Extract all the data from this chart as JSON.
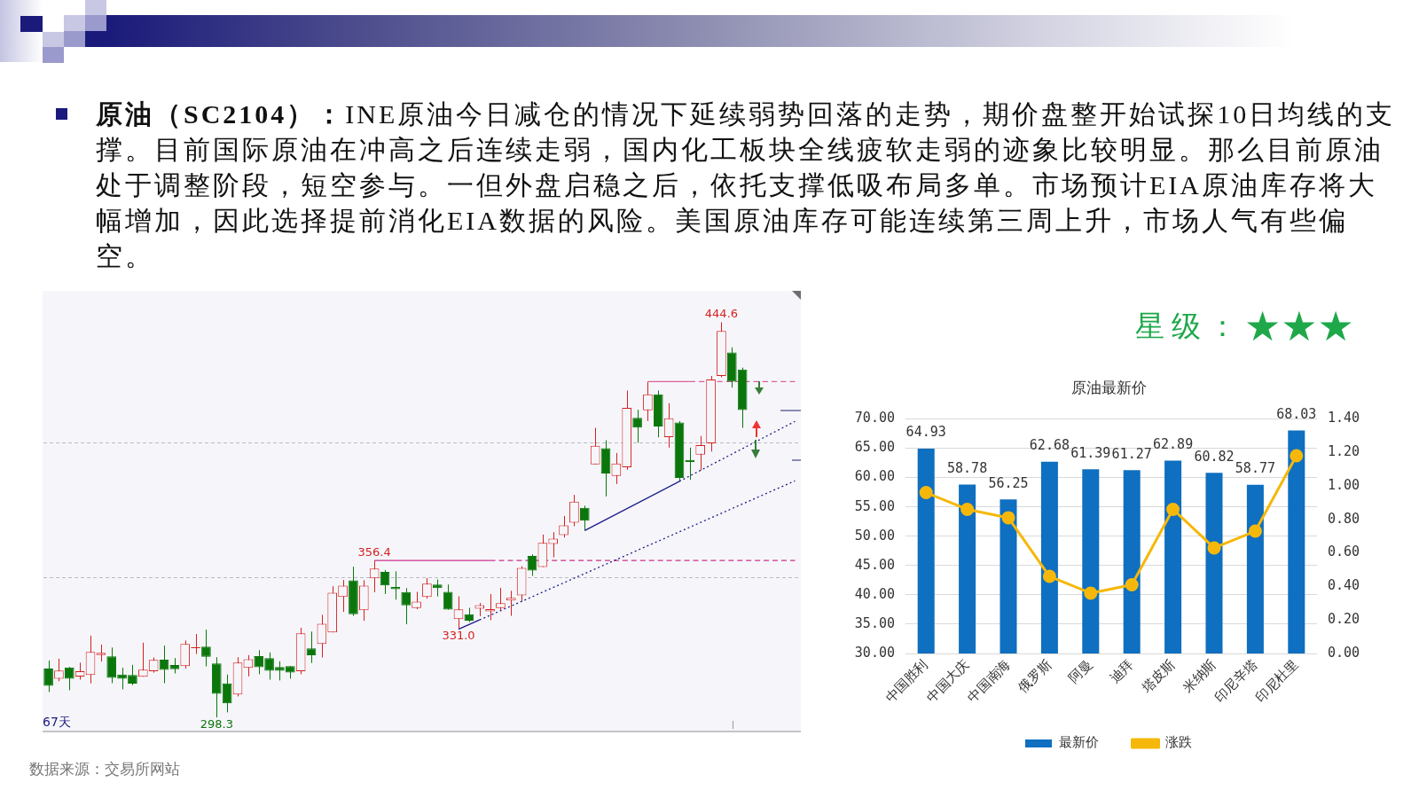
{
  "chart_data": [
    {
      "type": "other",
      "title": "原油（SC2104）：INE原油今日减仓的情况下延续弱势回落的走势，期价盘整开始试探10日均线的支撑。目前国际原油在冲高之后连续走弱，国内化工板块全线疲软走弱的迹象比较明显。那么目前原油处于调整阶段，短空参与。一但外盘启稳之后，依托支撑低吸布局多单。市场预计EIA原油库存将大幅增加，因此选择提前消化EIA数据的风险。美国原油库存可能连续第三周上升，市场人气有些偏空。"
    },
    {
      "type": "candlestick",
      "categories": [
        null,
        null,
        null,
        null,
        null,
        null,
        null,
        null,
        null,
        null,
        null,
        null,
        null,
        null,
        null,
        null,
        null,
        null,
        null,
        null,
        null,
        null,
        null,
        null,
        null,
        null,
        null,
        null,
        null,
        null,
        null,
        null,
        null,
        null,
        null,
        null,
        null,
        null,
        null,
        null,
        null,
        null,
        null,
        null,
        null,
        null,
        null,
        null,
        null,
        null,
        null,
        null,
        null,
        null,
        null,
        null,
        null,
        null,
        null,
        null,
        null,
        null,
        null,
        null,
        null,
        null,
        null,
        null,
        null,
        null,
        null,
        null
      ],
      "ohlc": [
        [
          316.4,
          319.4,
          307.7,
          310.0
        ],
        [
          312.6,
          320.1,
          311.7,
          315.7
        ],
        [
          316.8,
          317.0,
          308.4,
          312.6
        ],
        [
          313.5,
          318.6,
          312.3,
          315.4
        ],
        [
          314.0,
          328.6,
          310.9,
          322.6
        ],
        [
          321.4,
          325.3,
          319.0,
          322.2
        ],
        [
          320.9,
          324.2,
          311.0,
          313.0
        ],
        [
          314.2,
          316.7,
          308.7,
          312.6
        ],
        [
          314.0,
          317.8,
          310.3,
          310.8
        ],
        [
          313.4,
          326.0,
          313.4,
          316.0
        ],
        [
          315.4,
          320.5,
          314.9,
          319.6
        ],
        [
          319.7,
          324.9,
          311.0,
          315.9
        ],
        [
          317.7,
          320.3,
          314.6,
          316.2
        ],
        [
          317.3,
          326.8,
          316.4,
          325.5
        ],
        [
          324.0,
          329.2,
          321.8,
          324.3
        ],
        [
          324.5,
          330.8,
          317.2,
          320.8
        ],
        [
          318.3,
          320.6,
          298.3,
          307.1
        ],
        [
          310.9,
          314.2,
          300.2,
          303.5
        ],
        [
          306.8,
          320.6,
          306.1,
          318.6
        ],
        [
          316.7,
          321.4,
          313.5,
          319.9
        ],
        [
          321.0,
          323.2,
          314.3,
          316.9
        ],
        [
          320.3,
          322.4,
          312.3,
          315.6
        ],
        [
          317.0,
          319.1,
          312.0,
          315.6
        ],
        [
          317.3,
          317.3,
          312.7,
          314.9
        ],
        [
          315.4,
          331.5,
          314.3,
          329.5
        ],
        [
          323.9,
          330.1,
          318.5,
          321.3
        ],
        [
          325.5,
          336.3,
          320.5,
          333.0
        ],
        [
          329.8,
          346.9,
          329.8,
          344.5
        ],
        [
          342.9,
          349.2,
          337.4,
          347.1
        ],
        [
          349.1,
          354.1,
          335.9,
          336.5
        ],
        [
          338.0,
          349.1,
          334.1,
          347.1
        ],
        [
          349.8,
          356.4,
          344.7,
          353.4
        ],
        [
          352.2,
          352.9,
          344.0,
          347.2
        ],
        [
          346.6,
          352.4,
          341.9,
          345.8
        ],
        [
          344.7,
          346.2,
          332.8,
          339.8
        ],
        [
          338.8,
          344.8,
          338.4,
          341.2
        ],
        [
          342.9,
          349.9,
          342.3,
          347.8
        ],
        [
          347.5,
          349.4,
          343.1,
          346.2
        ],
        [
          344.8,
          347.5,
          338.2,
          338.2
        ],
        [
          334.7,
          343.2,
          331.0,
          338.3
        ],
        [
          336.5,
          338.9,
          333.6,
          334.1
        ],
        [
          338.6,
          340.7,
          335.8,
          339.9
        ],
        [
          337.6,
          344.0,
          334.3,
          338.4
        ],
        [
          338.8,
          346.3,
          338.1,
          340.6
        ],
        [
          341.6,
          345.2,
          335.9,
          342.6
        ],
        [
          343.5,
          354.3,
          341.3,
          353.7
        ],
        [
          358.1,
          358.7,
          350.7,
          352.7
        ],
        [
          354.0,
          366.0,
          354.0,
          362.9
        ],
        [
          362.5,
          366.9,
          357.6,
          364.5
        ],
        [
          365.8,
          372.9,
          364.9,
          369.4
        ],
        [
          370.4,
          380.7,
          369.1,
          378.2
        ],
        [
          375.9,
          376.7,
          367.5,
          371.1
        ],
        [
          392.0,
          405.5,
          392.0,
          398.9
        ],
        [
          398.0,
          400.9,
          380.1,
          388.6
        ],
        [
          387.7,
          396.2,
          384.7,
          392.3
        ],
        [
          390.9,
          419.3,
          390.0,
          412.9
        ],
        [
          409.2,
          412.2,
          400.0,
          405.6
        ],
        [
          412.0,
          422.6,
          408.0,
          417.9
        ],
        [
          417.9,
          419.3,
          402.0,
          406.0
        ],
        [
          402.1,
          414.6,
          398.2,
          409.0
        ],
        [
          407.5,
          408.0,
          385.7,
          387.0
        ],
        [
          393.6,
          398.2,
          386.3,
          392.9
        ],
        [
          395.6,
          402.5,
          389.8,
          399.1
        ],
        [
          399.8,
          424.7,
          396.7,
          423.4
        ],
        [
          424.7,
          444.6,
          424.2,
          441.4
        ],
        [
          433.4,
          435.3,
          420.4,
          422.6
        ],
        [
          427.1,
          427.8,
          405.5,
          412.1
        ],
        null,
        null,
        null,
        null,
        null
      ],
      "colors": [
        "#0b760b",
        "#d42020",
        "#0b760b",
        "#d42020",
        "#d42020",
        "#d42020",
        "#0b760b",
        "#0b760b",
        "#0b760b",
        "#d42020",
        "#d42020",
        "#0b760b",
        "#0b760b",
        "#d42020",
        "#d42020",
        "#0b760b",
        "#0b760b",
        "#0b760b",
        "#d42020",
        "#d42020",
        "#0b760b",
        "#0b760b",
        "#0b760b",
        "#0b760b",
        "#d42020",
        "#0b760b",
        "#d42020",
        "#d42020",
        "#d42020",
        "#0b760b",
        "#d42020",
        "#d42020",
        "#0b760b",
        "#0b760b",
        "#0b760b",
        "#d42020",
        "#d42020",
        "#0b760b",
        "#0b760b",
        "#d42020",
        "#0b760b",
        "#d42020",
        "#d42020",
        "#d42020",
        "#d42020",
        "#d42020",
        "#0b760b",
        "#d42020",
        "#d42020",
        "#d42020",
        "#d42020",
        "#0b760b",
        "#d42020",
        "#0b760b",
        "#d42020",
        "#d42020",
        "#0b760b",
        "#d42020",
        "#0b760b",
        "#d42020",
        "#0b760b",
        "#0b760b",
        "#d42020",
        "#d42020",
        "#d42020",
        "#0b760b",
        "#0b760b",
        null,
        null,
        null,
        null,
        null
      ],
      "ylim": [
        293,
        456
      ],
      "yticks": [
        {
          "value": 350,
          "label": null
        },
        {
          "value": 400,
          "label": null
        }
      ],
      "grid": "y",
      "tick_labels": false,
      "series": [
        {
          "type": "line",
          "color": "#1c1c8c",
          "line_style": "solid",
          "values": [
            null,
            null,
            null,
            null,
            null,
            null,
            null,
            null,
            null,
            null,
            null,
            null,
            null,
            null,
            null,
            null,
            null,
            null,
            null,
            null,
            null,
            null,
            null,
            null,
            null,
            null,
            null,
            null,
            null,
            null,
            null,
            null,
            null,
            null,
            null,
            null,
            null,
            null,
            null,
            null,
            null,
            null,
            null,
            null,
            null,
            null,
            null,
            null,
            null,
            null,
            null,
            367.5,
            null,
            null,
            null,
            null,
            null,
            null,
            null,
            null,
            385.7,
            null,
            null,
            null,
            null,
            null,
            null,
            null,
            null,
            null,
            null,
            null
          ]
        },
        {
          "type": "line",
          "color": "#1c1c8c",
          "line_style": "dotted",
          "values": [
            null,
            null,
            null,
            null,
            null,
            null,
            null,
            null,
            null,
            null,
            null,
            null,
            null,
            null,
            null,
            null,
            null,
            null,
            null,
            null,
            null,
            null,
            null,
            null,
            null,
            null,
            null,
            null,
            null,
            null,
            null,
            null,
            null,
            null,
            null,
            null,
            null,
            null,
            null,
            null,
            null,
            null,
            null,
            null,
            null,
            null,
            null,
            null,
            null,
            null,
            null,
            null,
            null,
            null,
            null,
            null,
            null,
            null,
            null,
            null,
            385.7,
            null,
            null,
            null,
            null,
            null,
            null,
            null,
            null,
            null,
            null,
            407.9
          ]
        },
        {
          "type": "line",
          "color": "#1c1c8c",
          "line_style": "solid",
          "values": [
            null,
            null,
            null,
            null,
            null,
            null,
            null,
            null,
            null,
            null,
            null,
            null,
            null,
            null,
            null,
            null,
            null,
            null,
            null,
            null,
            null,
            null,
            null,
            null,
            null,
            null,
            null,
            null,
            null,
            null,
            null,
            null,
            null,
            null,
            null,
            null,
            null,
            null,
            null,
            331.0,
            null,
            334.4,
            null,
            null,
            null,
            null,
            null,
            null,
            null,
            null,
            null,
            null,
            null,
            null,
            null,
            null,
            null,
            null,
            null,
            null,
            null,
            null,
            null,
            null,
            null,
            null,
            null,
            null,
            null,
            null,
            null,
            null
          ]
        },
        {
          "type": "line",
          "color": "#1c1c8c",
          "line_style": "dotted",
          "values": [
            null,
            null,
            null,
            null,
            null,
            null,
            null,
            null,
            null,
            null,
            null,
            null,
            null,
            null,
            null,
            null,
            null,
            null,
            null,
            null,
            null,
            null,
            null,
            null,
            null,
            null,
            null,
            null,
            null,
            null,
            null,
            null,
            null,
            null,
            null,
            null,
            null,
            null,
            null,
            null,
            null,
            334.4,
            null,
            null,
            null,
            null,
            null,
            null,
            null,
            null,
            null,
            null,
            null,
            null,
            null,
            null,
            null,
            null,
            null,
            null,
            null,
            null,
            null,
            null,
            null,
            null,
            null,
            null,
            null,
            null,
            null,
            385.9
          ]
        },
        {
          "type": "line",
          "color": "#cc2e8a",
          "line_style": "solid",
          "values": [
            null,
            null,
            null,
            null,
            null,
            null,
            null,
            null,
            null,
            null,
            null,
            null,
            null,
            null,
            null,
            null,
            null,
            null,
            null,
            null,
            null,
            null,
            null,
            null,
            null,
            null,
            null,
            null,
            null,
            null,
            null,
            356.4,
            null,
            null,
            null,
            null,
            null,
            null,
            null,
            null,
            null,
            null,
            356.4,
            null,
            null,
            null,
            null,
            null,
            null,
            null,
            null,
            null,
            null,
            null,
            null,
            null,
            null,
            null,
            null,
            null,
            null,
            null,
            null,
            null,
            null,
            null,
            null,
            null,
            null,
            null,
            null,
            null
          ]
        },
        {
          "type": "line",
          "color": "#cc2e8a",
          "line_style": "dashed",
          "values": [
            null,
            null,
            null,
            null,
            null,
            null,
            null,
            null,
            null,
            null,
            null,
            null,
            null,
            null,
            null,
            null,
            null,
            null,
            null,
            null,
            null,
            null,
            null,
            null,
            null,
            null,
            null,
            null,
            null,
            null,
            null,
            null,
            null,
            null,
            null,
            null,
            null,
            null,
            null,
            null,
            null,
            null,
            356.4,
            null,
            null,
            null,
            null,
            null,
            null,
            null,
            null,
            null,
            null,
            null,
            null,
            null,
            null,
            null,
            null,
            null,
            null,
            null,
            null,
            null,
            null,
            null,
            null,
            null,
            null,
            null,
            null,
            356.4
          ]
        },
        {
          "type": "line",
          "color": "#dc5f9a",
          "line_style": "solid",
          "values": [
            null,
            null,
            null,
            null,
            null,
            null,
            null,
            null,
            null,
            null,
            null,
            null,
            null,
            null,
            null,
            null,
            null,
            null,
            null,
            null,
            null,
            null,
            null,
            null,
            null,
            null,
            null,
            null,
            null,
            null,
            null,
            null,
            null,
            null,
            null,
            null,
            null,
            null,
            null,
            null,
            null,
            null,
            null,
            null,
            null,
            null,
            null,
            null,
            null,
            null,
            null,
            null,
            null,
            null,
            null,
            null,
            null,
            422.6,
            null,
            null,
            null,
            422.6,
            null,
            null,
            null,
            null,
            null,
            null,
            null,
            null,
            null,
            null
          ]
        },
        {
          "type": "line",
          "color": "#dc5f9a",
          "line_style": "dashed",
          "values": [
            null,
            null,
            null,
            null,
            null,
            null,
            null,
            null,
            null,
            null,
            null,
            null,
            null,
            null,
            null,
            null,
            null,
            null,
            null,
            null,
            null,
            null,
            null,
            null,
            null,
            null,
            null,
            null,
            null,
            null,
            null,
            null,
            null,
            null,
            null,
            null,
            null,
            null,
            null,
            null,
            null,
            null,
            null,
            null,
            null,
            null,
            null,
            null,
            null,
            null,
            null,
            null,
            null,
            null,
            null,
            null,
            null,
            null,
            null,
            null,
            null,
            422.6,
            null,
            null,
            null,
            null,
            null,
            null,
            null,
            null,
            null,
            422.6
          ]
        }
      ],
      "annotations": [
        {
          "text": "444.6",
          "y": 444.6
        },
        {
          "text": "356.4",
          "y": 356.4
        },
        {
          "text": "331.0",
          "y": 331.0
        },
        {
          "text": "298.3",
          "y": 298.3
        },
        "67天",
        "数据来源：交易所网站"
      ]
    },
    {
      "type": "other",
      "title": "星级：★★★"
    },
    {
      "type": "bar",
      "title": "原油最新价",
      "categories": [
        "中国胜利",
        "中国大庆",
        "中国南海",
        "俄罗斯",
        "阿曼",
        "迪拜",
        "塔皮斯",
        "米纳斯",
        "印尼辛塔",
        "印尼杜里"
      ],
      "series": [
        {
          "name": "最新价",
          "color": "#0f6fc0",
          "values": [
            64.93,
            58.78,
            56.25,
            62.68,
            61.39,
            61.27,
            62.89,
            60.82,
            58.77,
            68.03
          ],
          "value_labels": [
            "64.93",
            "58.78",
            "56.25",
            "62.68",
            "61.39",
            "61.27",
            "62.89",
            "60.82",
            "58.77",
            "68.03"
          ]
        },
        {
          "name": "涨跌",
          "type": "line",
          "axis": "y2",
          "color": "#f5b80a",
          "marker": "circle",
          "values": [
            0.96,
            0.86,
            0.81,
            0.46,
            0.36,
            0.41,
            0.86,
            0.63,
            0.73,
            1.18
          ]
        }
      ],
      "ylim": [
        30,
        70
      ],
      "yticks": [
        {
          "value": 30,
          "label": "30.00"
        },
        {
          "value": 35,
          "label": "35.00"
        },
        {
          "value": 40,
          "label": "40.00"
        },
        {
          "value": 45,
          "label": "45.00"
        },
        {
          "value": 50,
          "label": "50.00"
        },
        {
          "value": 55,
          "label": "55.00"
        },
        {
          "value": 60,
          "label": "60.00"
        },
        {
          "value": 65,
          "label": "65.00"
        },
        {
          "value": 70,
          "label": "70.00"
        }
      ],
      "y2lim": [
        0,
        1.4
      ],
      "y2ticks": [
        {
          "value": 0,
          "label": "0.00"
        },
        {
          "value": 0.2,
          "label": "0.20"
        },
        {
          "value": 0.4,
          "label": "0.40"
        },
        {
          "value": 0.6,
          "label": "0.60"
        },
        {
          "value": 0.8,
          "label": "0.80"
        },
        {
          "value": 1.0,
          "label": "1.00"
        },
        {
          "value": 1.2,
          "label": "1.20"
        },
        {
          "value": 1.4,
          "label": "1.40"
        }
      ],
      "grid": "y",
      "legend": "bottom"
    }
  ]
}
